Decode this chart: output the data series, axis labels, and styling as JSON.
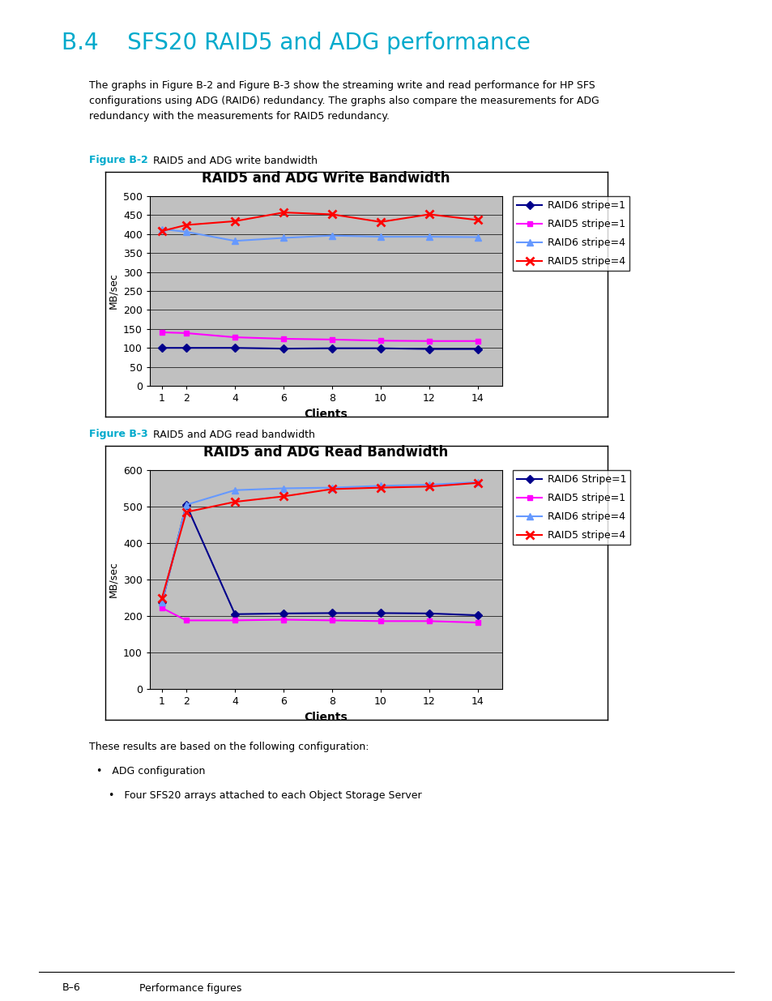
{
  "page_title": "B.4    SFS20 RAID5 and ADG performance",
  "page_title_color": "#00AACC",
  "body_text_line1": "The graphs in Figure B-2 and Figure B-3 show the streaming write and read performance for HP SFS",
  "body_text_line2": "configurations using ADG (RAID6) redundancy. The graphs also compare the measurements for ADG",
  "body_text_line3": "redundancy with the measurements for RAID5 redundancy.",
  "fig2_label": "Figure B-2",
  "fig2_desc": "  RAID5 and ADG write bandwidth",
  "fig3_label": "Figure B-3",
  "fig3_desc": "  RAID5 and ADG read bandwidth",
  "bottom_text": "These results are based on the following configuration:",
  "bullet1": "ADG configuration",
  "bullet2": "Four SFS20 arrays attached to each Object Storage Server",
  "footer_left": "B–6",
  "footer_right": "Performance figures",
  "clients": [
    1,
    2,
    4,
    6,
    8,
    10,
    12,
    14
  ],
  "write": {
    "title": "RAID5 and ADG Write Bandwidth",
    "ylabel": "MB/sec",
    "xlabel": "Clients",
    "ylim": [
      0,
      500
    ],
    "yticks": [
      0,
      50,
      100,
      150,
      200,
      250,
      300,
      350,
      400,
      450,
      500
    ],
    "raid6_stripe1": [
      100,
      100,
      100,
      98,
      99,
      99,
      97,
      97
    ],
    "raid5_stripe1": [
      141,
      139,
      128,
      124,
      122,
      119,
      118,
      118
    ],
    "raid6_stripe4": [
      413,
      406,
      382,
      390,
      396,
      393,
      393,
      392
    ],
    "raid5_stripe4": [
      408,
      424,
      434,
      457,
      452,
      432,
      452,
      437
    ]
  },
  "read": {
    "title": "RAID5 and ADG Read Bandwidth",
    "ylabel": "MB/sec",
    "xlabel": "Clients",
    "ylim": [
      0,
      600
    ],
    "yticks": [
      0,
      100,
      200,
      300,
      400,
      500,
      600
    ],
    "raid6_stripe1": [
      237,
      505,
      205,
      207,
      208,
      208,
      207,
      202
    ],
    "raid5_stripe1": [
      222,
      188,
      188,
      190,
      188,
      186,
      186,
      182
    ],
    "raid6_stripe4": [
      237,
      505,
      545,
      550,
      552,
      557,
      560,
      567
    ],
    "raid5_stripe4": [
      250,
      485,
      513,
      528,
      548,
      552,
      555,
      565
    ]
  },
  "write_legend": {
    "raid6_stripe1": "RAID6 stripe=1",
    "raid5_stripe1": "RAID5 stripe=1",
    "raid6_stripe4": "RAID6 stripe=4",
    "raid5_stripe4": "RAID5 stripe=4"
  },
  "read_legend": {
    "raid6_stripe1": "RAID6 Stripe=1",
    "raid5_stripe1": "RAID5 stripe=1",
    "raid6_stripe4": "RAID6 stripe=4",
    "raid5_stripe4": "RAID5 stripe=4"
  },
  "colors": {
    "raid6_stripe1": "#00008B",
    "raid5_stripe1": "#FF00FF",
    "raid6_stripe4": "#6699FF",
    "raid5_stripe4": "#FF0000"
  },
  "bg_color": "#C0C0C0"
}
